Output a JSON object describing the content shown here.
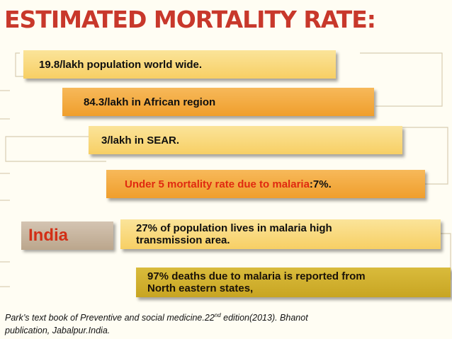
{
  "title": "ESTIMATED MORTALITY RATE:",
  "bars": {
    "b1": "19.8/lakh population world wide.",
    "b2": "84.3/lakh in African region",
    "b3": "3/lakh in SEAR.",
    "b4_text": "Under 5 mortality rate due to malaria ",
    "b4_value": ":7%.",
    "b5_line1": "27% of population lives in malaria high",
    "b5_line2": "transmission area.",
    "b6_line1": "97%  deaths due to malaria is reported from",
    "b6_line2": "North eastern states,"
  },
  "india_label": "India",
  "reference": {
    "part1": "Park’s text book of Preventive and social medicine.22",
    "superscript": "nd",
    "part2": " edition(2013). Bhanot",
    "line2": "publication, Jabalpur.India."
  }
}
